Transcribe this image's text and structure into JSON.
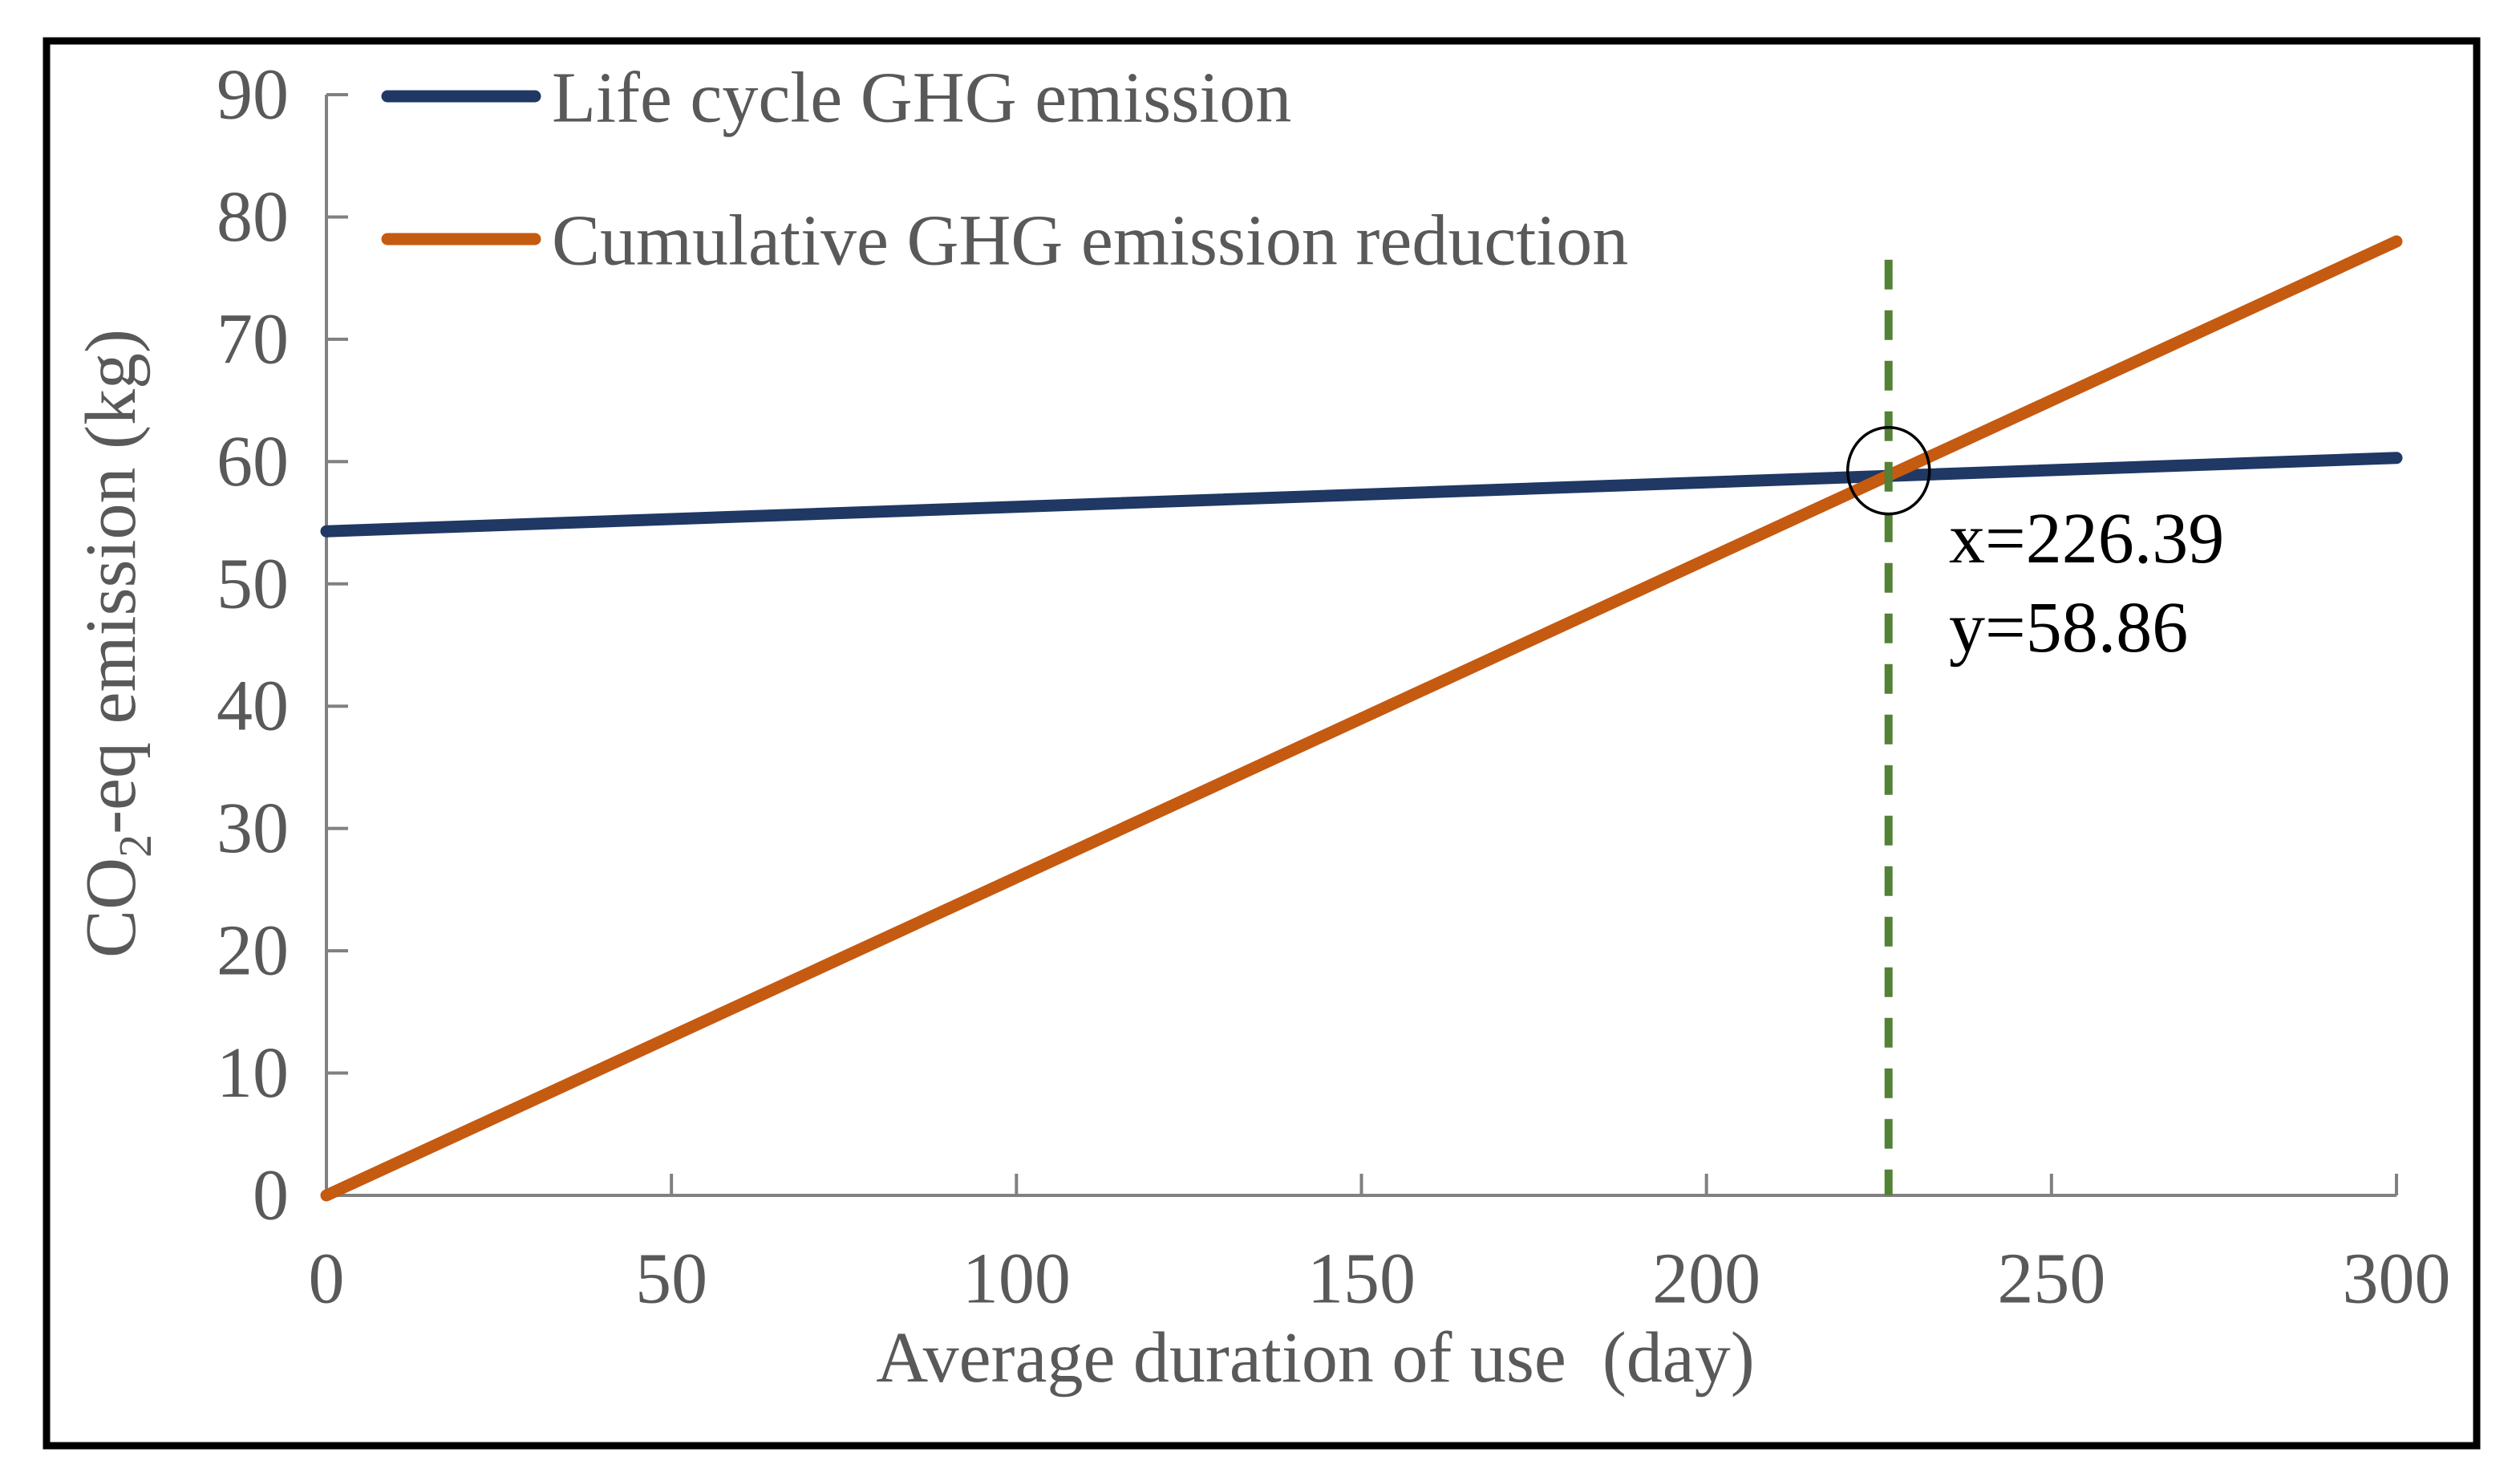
{
  "figure": {
    "background": "#FFFFFF",
    "border_color": "#000000"
  },
  "chart_data": {
    "type": "line",
    "title": "",
    "xlabel": "Average duration of use  (day)",
    "ylabel_parts": {
      "pre": "CO",
      "sub": "2",
      "post": "-eq emission (kg)"
    },
    "ylabel_plain": "CO2-eq emission (kg)",
    "xlim": [
      0,
      300
    ],
    "ylim": [
      0,
      90
    ],
    "x_ticks": [
      0,
      50,
      100,
      150,
      200,
      250,
      300
    ],
    "y_ticks": [
      0,
      10,
      20,
      30,
      40,
      50,
      60,
      70,
      80,
      90
    ],
    "grid": false,
    "legend_position": "top-left-inside",
    "axis_color": "#808080",
    "label_color": "#595959",
    "series": [
      {
        "name": "Life cycle GHG emission",
        "color": "#1F3864",
        "points": [
          [
            0,
            54.3
          ],
          [
            300,
            60.3
          ]
        ]
      },
      {
        "name": "Cumulative GHG emission reduction",
        "color": "#C55A11",
        "points": [
          [
            0,
            0
          ],
          [
            300,
            78
          ]
        ]
      }
    ],
    "intersection": {
      "x": 226.39,
      "y": 58.86,
      "marker": "ellipse-outline",
      "marker_color": "#000000",
      "guide_line": {
        "orientation": "vertical",
        "style": "dashed",
        "color": "#538135",
        "from_y": 76.5,
        "to_y": 0
      }
    },
    "annotation": {
      "line1": "x=226.39",
      "line2": "y=58.86",
      "color": "#000000"
    }
  }
}
